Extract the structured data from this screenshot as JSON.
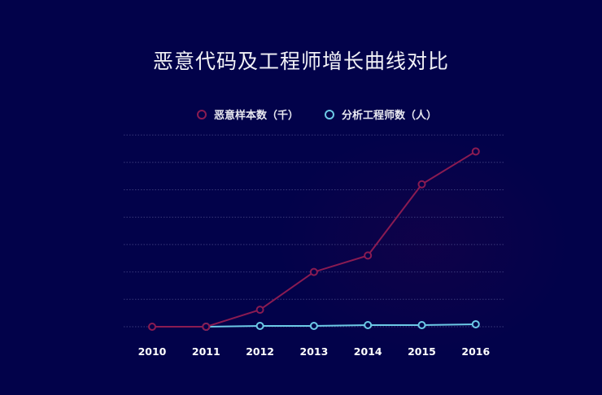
{
  "title": "恶意代码及工程师增长曲线对比",
  "colors": {
    "background": "#02024a",
    "malware": "#8a1b52",
    "engineers": "#6cc9e6",
    "grid": "#3a3a7a"
  },
  "legend": [
    {
      "label": "恶意样本数（千）",
      "color": "#8a1b52"
    },
    {
      "label": "分析工程师数（人）",
      "color": "#6cc9e6"
    }
  ],
  "chart_data": {
    "type": "line",
    "title": "恶意代码及工程师增长曲线对比",
    "xlabel": "",
    "ylabel": "",
    "categories": [
      "2010",
      "2011",
      "2012",
      "2013",
      "2014",
      "2015",
      "2016"
    ],
    "series": [
      {
        "name": "恶意样本数（千）",
        "color": "#8a1b52",
        "values": [
          0,
          0,
          0.62,
          2.0,
          2.6,
          5.2,
          6.4
        ]
      },
      {
        "name": "分析工程师数（人）",
        "color": "#6cc9e6",
        "values": [
          null,
          0,
          0.03,
          0.03,
          0.06,
          0.06,
          0.09
        ]
      }
    ],
    "ylim": [
      0,
      7
    ],
    "yticks_shown": false,
    "grid": "horizontal dotted, 8 lines",
    "legend_position": "top-center",
    "note": "No y-axis tick labels shown; values expressed in gridline units (estimated)."
  }
}
